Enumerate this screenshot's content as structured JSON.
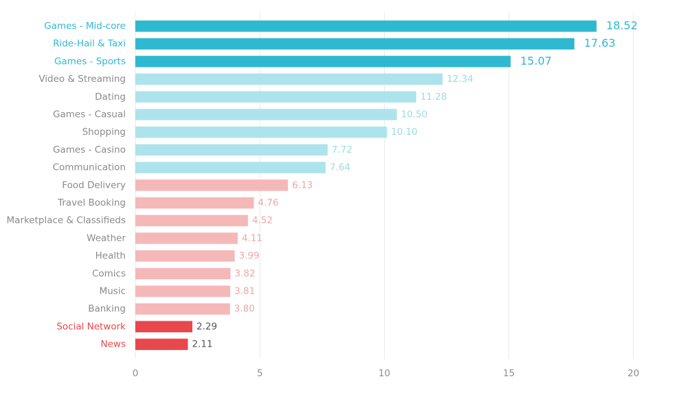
{
  "chart_data": {
    "type": "bar",
    "orientation": "horizontal",
    "title": "",
    "xlabel": "",
    "ylabel": "",
    "xlim": [
      0,
      20
    ],
    "x_ticks": [
      0,
      5,
      10,
      15,
      20
    ],
    "grid": "vertical",
    "legend": "none",
    "categories": [
      "Games - Mid-core",
      "Ride-Hail & Taxi",
      "Games - Sports",
      "Video & Streaming",
      "Dating",
      "Games - Casual",
      "Shopping",
      "Games - Casino",
      "Communication",
      "Food Delivery",
      "Travel Booking",
      "Marketplace & Classifieds",
      "Weather",
      "Health",
      "Comics",
      "Music",
      "Banking",
      "Social Network",
      "News"
    ],
    "values": [
      18.52,
      17.63,
      15.07,
      12.34,
      11.28,
      10.5,
      10.1,
      7.72,
      7.64,
      6.13,
      4.76,
      4.52,
      4.11,
      3.99,
      3.82,
      3.81,
      3.8,
      2.29,
      2.11
    ],
    "value_labels": [
      "18.52",
      "17.63",
      "15.07",
      "12.34",
      "11.28",
      "10.50",
      "10.10",
      "7.72",
      "7.64",
      "6.13",
      "4.76",
      "4.52",
      "4.11",
      "3.99",
      "3.82",
      "3.81",
      "3.80",
      "2.29",
      "2.11"
    ],
    "groups": [
      "top",
      "top",
      "top",
      "high",
      "high",
      "high",
      "high",
      "high",
      "high",
      "low",
      "low",
      "low",
      "low",
      "low",
      "low",
      "low",
      "low",
      "bottom",
      "bottom"
    ],
    "colors": {
      "top_bar": "#2fb9d0",
      "top_text": "#2fb9d0",
      "high_bar": "#ade3ec",
      "high_label": "#8a8a8a",
      "high_value": "#9adbe6",
      "low_bar": "#f5b8b8",
      "low_label": "#8a8a8a",
      "low_value": "#f0a6a6",
      "bottom_bar": "#e8474c",
      "bottom_text": "#e8474c",
      "grid": "#e9e9e9",
      "tick": "#8d8d8d"
    }
  }
}
